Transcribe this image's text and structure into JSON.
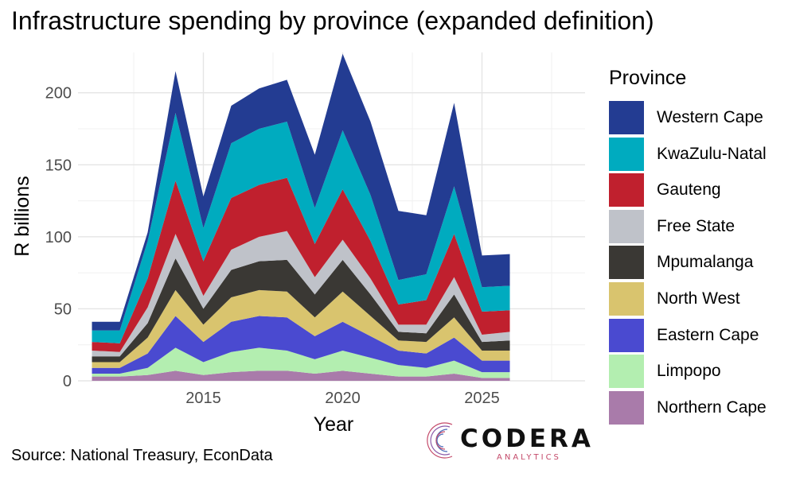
{
  "chart_data": {
    "type": "area",
    "stacked": true,
    "title": "Infrastructure spending by province (expanded definition)",
    "xlabel": "Year",
    "ylabel": "R billions",
    "source": "Source: National Treasury, EconData",
    "x": [
      2011,
      2012,
      2013,
      2014,
      2015,
      2016,
      2017,
      2018,
      2019,
      2020,
      2021,
      2022,
      2023,
      2024,
      2025,
      2026
    ],
    "xticks": [
      2015,
      2020,
      2025
    ],
    "yticks": [
      0,
      50,
      100,
      150,
      200
    ],
    "xlim": [
      2010.5,
      2028.7
    ],
    "ylim": [
      0,
      228
    ],
    "grid": true,
    "legend": {
      "title": "Province",
      "position": "right"
    },
    "series": [
      {
        "name": "Northern Cape",
        "color": "#A97BAA",
        "values": [
          3,
          3,
          4,
          7,
          4,
          6,
          7,
          7,
          5,
          7,
          5,
          3,
          3,
          5,
          2,
          2
        ]
      },
      {
        "name": "Limpopo",
        "color": "#B3EEB0",
        "values": [
          2,
          2,
          5,
          16,
          9,
          14,
          16,
          14,
          10,
          14,
          11,
          8,
          6,
          9,
          4,
          4
        ]
      },
      {
        "name": "Eastern Cape",
        "color": "#4A4AD0",
        "values": [
          4,
          4,
          10,
          22,
          14,
          21,
          22,
          23,
          16,
          20,
          15,
          10,
          10,
          16,
          8,
          8
        ]
      },
      {
        "name": "North West",
        "color": "#D9C46E",
        "values": [
          4,
          4,
          11,
          18,
          12,
          17,
          18,
          18,
          13,
          21,
          14,
          7,
          8,
          14,
          7,
          7
        ]
      },
      {
        "name": "Mpumalanga",
        "color": "#3A3834",
        "values": [
          4,
          4,
          10,
          22,
          11,
          19,
          20,
          22,
          16,
          22,
          15,
          6,
          6,
          16,
          6,
          7
        ]
      },
      {
        "name": "Free State",
        "color": "#BFC2C9",
        "values": [
          4,
          3,
          11,
          17,
          9,
          14,
          17,
          20,
          12,
          14,
          11,
          5,
          6,
          12,
          5,
          6
        ]
      },
      {
        "name": "Gauteng",
        "color": "#C0202E",
        "values": [
          6,
          6,
          20,
          37,
          24,
          36,
          36,
          37,
          23,
          35,
          26,
          14,
          17,
          30,
          16,
          15
        ]
      },
      {
        "name": "KwaZulu-Natal",
        "color": "#00ABBF",
        "values": [
          8,
          9,
          26,
          47,
          23,
          38,
          39,
          39,
          25,
          41,
          32,
          17,
          18,
          33,
          17,
          17
        ]
      },
      {
        "name": "Western Cape",
        "color": "#233C92",
        "values": [
          6,
          6,
          6,
          29,
          22,
          26,
          28,
          29,
          37,
          53,
          51,
          48,
          41,
          58,
          22,
          22
        ]
      }
    ]
  },
  "logo": {
    "word": "CODERA",
    "sub": "ANALYTICS"
  }
}
